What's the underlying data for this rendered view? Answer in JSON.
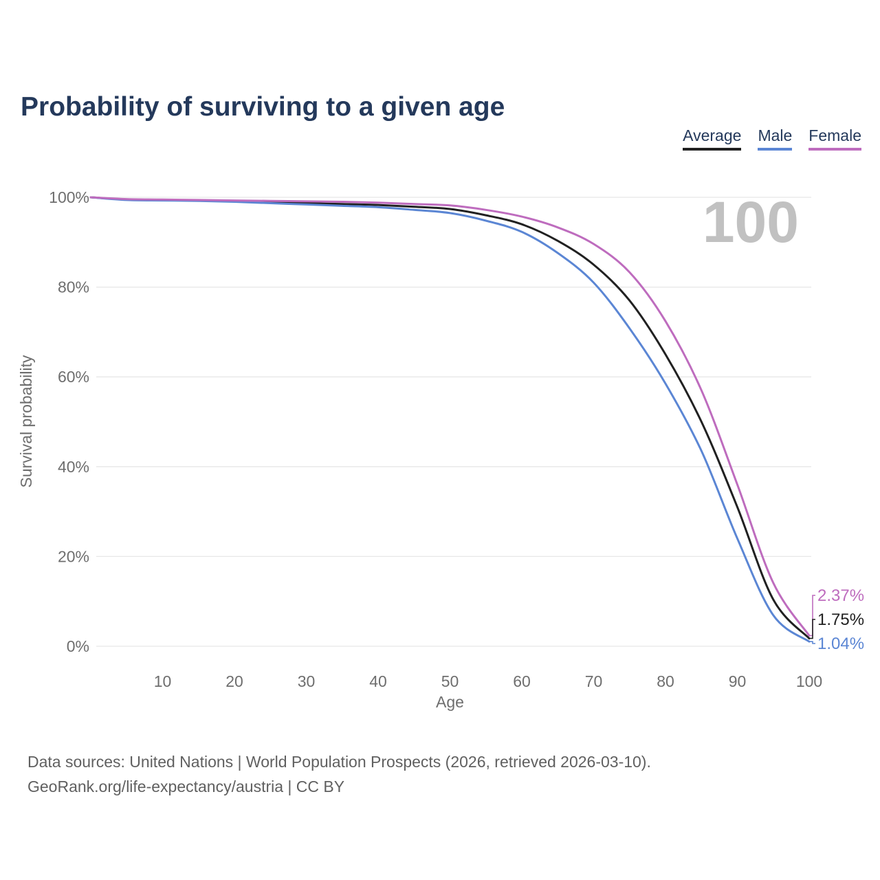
{
  "header": {
    "title": "Probability of surviving to a given age"
  },
  "chart": {
    "legend": [
      {
        "label": "Average",
        "color": "#212121"
      },
      {
        "label": "Male",
        "color": "#5b86d4"
      },
      {
        "label": "Female",
        "color": "#be6cbe"
      }
    ]
  },
  "chart_data": {
    "type": "line",
    "title": "Probability of surviving to a given age",
    "xlabel": "Age",
    "ylabel": "Survival probability",
    "xlim": [
      0,
      100
    ],
    "ylim": [
      0,
      100
    ],
    "grid": "horizontal-only",
    "legend_position": "top-right",
    "watermark": "100",
    "x": [
      0,
      5,
      10,
      15,
      20,
      25,
      30,
      35,
      40,
      45,
      50,
      55,
      60,
      65,
      70,
      75,
      80,
      85,
      90,
      95,
      100
    ],
    "x_ticks": [
      10,
      20,
      30,
      40,
      50,
      60,
      70,
      80,
      90,
      100
    ],
    "y_ticks": [
      {
        "value": 0,
        "label": "0%"
      },
      {
        "value": 20,
        "label": "20%"
      },
      {
        "value": 40,
        "label": "40%"
      },
      {
        "value": 60,
        "label": "60%"
      },
      {
        "value": 80,
        "label": "80%"
      },
      {
        "value": 100,
        "label": "100%"
      }
    ],
    "series": [
      {
        "name": "Average",
        "color": "#212121",
        "values": [
          100,
          99.5,
          99.4,
          99.3,
          99.1,
          98.9,
          98.7,
          98.5,
          98.3,
          97.9,
          97.4,
          96.0,
          94.0,
          90.3,
          85.0,
          77.0,
          65.0,
          50.0,
          31.0,
          10.4,
          1.75
        ],
        "end_label": "1.75%"
      },
      {
        "name": "Male",
        "color": "#5b86d4",
        "values": [
          100,
          99.4,
          99.3,
          99.2,
          99.0,
          98.7,
          98.4,
          98.1,
          97.8,
          97.2,
          96.5,
          94.8,
          92.3,
          87.6,
          81.0,
          70.8,
          58.5,
          43.5,
          24.0,
          6.9,
          1.04
        ],
        "end_label": "1.04%"
      },
      {
        "name": "Female",
        "color": "#be6cbe",
        "values": [
          100,
          99.6,
          99.5,
          99.4,
          99.3,
          99.2,
          99.1,
          99.0,
          98.8,
          98.5,
          98.2,
          97.2,
          95.7,
          93.3,
          89.6,
          83.3,
          72.4,
          57.0,
          36.0,
          14.1,
          2.37
        ],
        "end_label": "2.37%"
      }
    ],
    "colors": {
      "title_navy": "#24395b",
      "axis_text": "#6e6e6e",
      "gridline": "#e7e7e7",
      "watermark": "#c1c1c1",
      "footer_text": "#606060"
    }
  },
  "footer": {
    "line1": "Data sources: United Nations | World Population Prospects (2026, retrieved 2026-03-10).",
    "line2": "GeoRank.org/life-expectancy/austria | CC BY"
  }
}
